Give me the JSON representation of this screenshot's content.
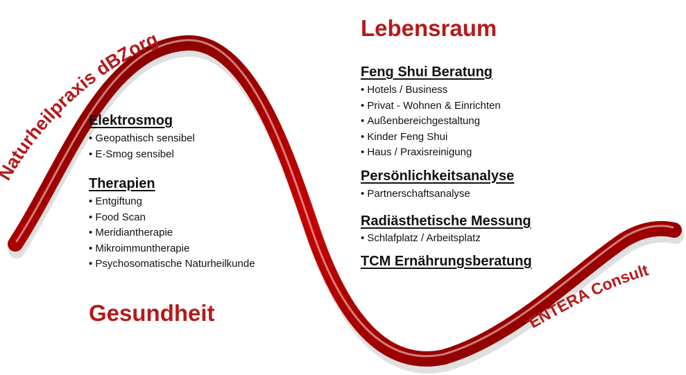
{
  "colors": {
    "ribbon_dark": "#7a0000",
    "ribbon_mid": "#c40000",
    "ribbon_light": "#ff4a4a",
    "title_red": "#b51a1a",
    "text": "#111111"
  },
  "brand_left": "Naturheilpraxis dBZorg",
  "brand_right": "ENTERA Consult",
  "gesundheit": {
    "title": "Gesundheit",
    "sections": [
      {
        "heading": "Elektrosmog",
        "items": [
          "Geopathisch sensibel",
          "E-Smog sensibel"
        ]
      },
      {
        "heading": "Therapien",
        "items": [
          "Entgiftung",
          "Food Scan",
          "Meridiantherapie",
          "Mikroimmuntherapie",
          "Psychosomatische Naturheilkunde"
        ]
      }
    ]
  },
  "lebensraum": {
    "title": "Lebensraum",
    "sections": [
      {
        "heading": "Feng Shui Beratung",
        "items": [
          "Hotels / Business",
          "Privat - Wohnen & Einrichten",
          "Außenbereichgestaltung",
          "Kinder Feng Shui",
          "Haus / Praxisreinigung"
        ]
      },
      {
        "heading": "Persönlichkeitsanalyse",
        "items": [
          "Partnerschaftsanalyse"
        ]
      },
      {
        "heading": "Radiästhetische Messung",
        "items": [
          "Schlafplatz / Arbeitsplatz"
        ]
      },
      {
        "heading": "TCM Ernährungsberatung",
        "items": []
      }
    ]
  }
}
